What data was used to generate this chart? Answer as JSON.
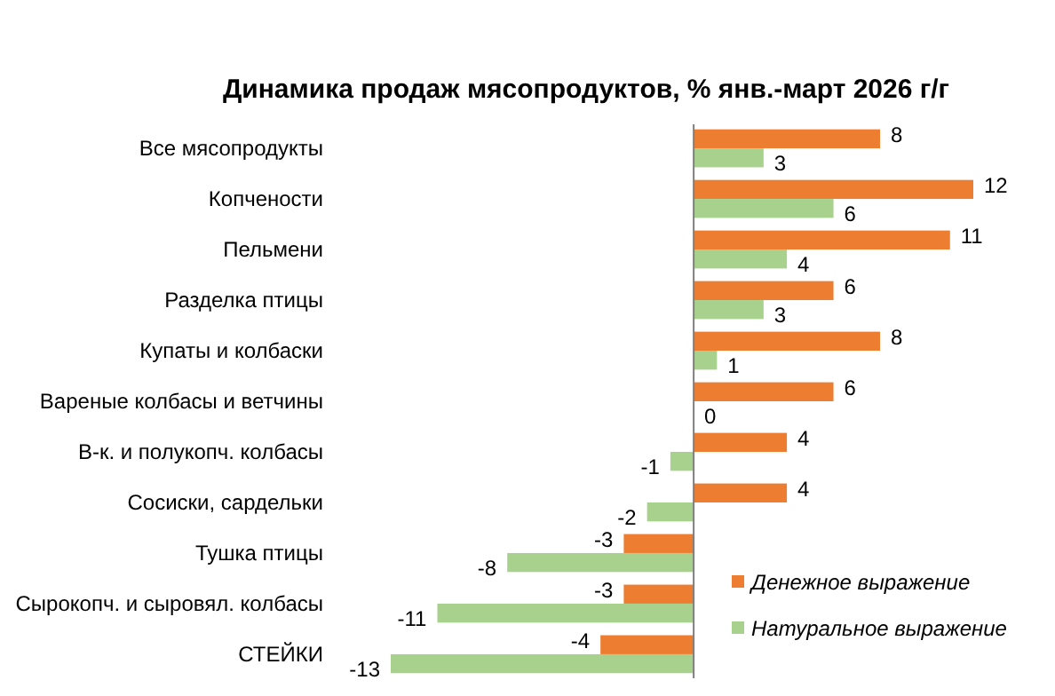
{
  "chart_data": {
    "type": "bar",
    "orientation": "horizontal",
    "title": "Динамика продаж мясопродуктов, % янв.-март 2026 г/г",
    "categories": [
      "Все мясопродукты",
      "Копчености",
      "Пельмени",
      "Разделка птицы",
      "Купаты и колбаски",
      "Вареные колбасы и ветчины",
      "В-к. и полукопч. колбасы",
      "Сосиски, сардельки",
      "Тушка птицы",
      "Сырокопч. и сыровял. колбасы",
      "СТЕЙКИ"
    ],
    "series": [
      {
        "name": "Денежное выражение",
        "color": "#ed7d31",
        "values": [
          8,
          12,
          11,
          6,
          8,
          6,
          4,
          4,
          -3,
          -3,
          -4
        ]
      },
      {
        "name": "Натуральное выражение",
        "color": "#a9d18e",
        "values": [
          3,
          6,
          4,
          3,
          1,
          0,
          -1,
          -2,
          -8,
          -11,
          -13
        ]
      }
    ],
    "data_labels": true,
    "tick_labels": "y",
    "legend": "bottom right"
  }
}
